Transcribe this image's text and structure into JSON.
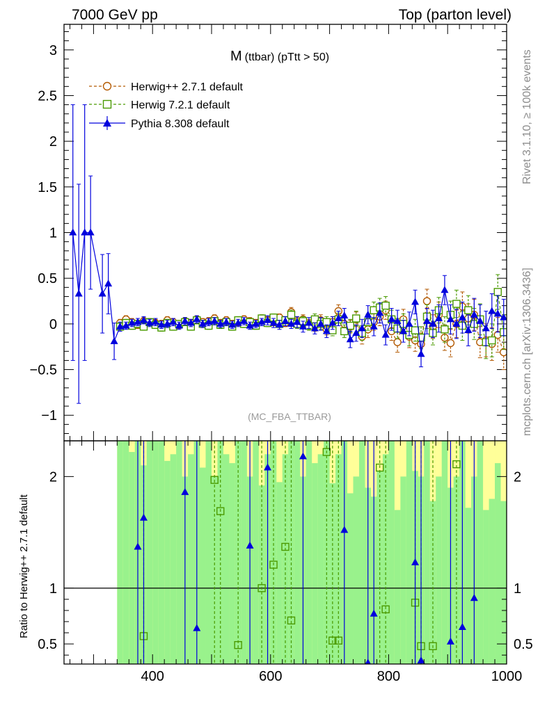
{
  "header": {
    "energy_label": "7000 GeV pp",
    "process_label": "Top (parton level)"
  },
  "side_labels": {
    "rivet": "Rivet 3.1.10, ≥ 100k events",
    "mcplots": "mcplots.cern.ch [arXiv:1306.3436]"
  },
  "chart_data": [
    {
      "type": "line",
      "title_main": "M",
      "title_sub": "(ttbar) (pTtt > 50)",
      "analysis_label": "(MC_FBA_TTBAR)",
      "xlabel": "",
      "ylabel": "",
      "xlim": [
        250,
        1000
      ],
      "ylim": [
        -1.28,
        3.28
      ],
      "yticks": [
        -1,
        -0.5,
        0,
        0.5,
        1,
        1.5,
        2,
        2.5,
        3
      ],
      "ytick_labels": [
        "−1",
        "−0.5",
        "0",
        "0.5",
        "1",
        "1.5",
        "2",
        "2.5",
        "3"
      ],
      "legend_position": "top-left",
      "legend": [
        "Herwig++ 2.7.1 default",
        "Herwig 7.2.1 default",
        "Pythia 8.308 default"
      ],
      "series": [
        {
          "name": "Herwig++ 2.7.1 default",
          "color": "#b35900",
          "marker": "circle-open",
          "line": "dashed",
          "x": [
            345,
            355,
            365,
            375,
            385,
            395,
            405,
            415,
            425,
            435,
            445,
            455,
            465,
            475,
            485,
            495,
            505,
            515,
            525,
            535,
            545,
            555,
            565,
            575,
            585,
            595,
            605,
            615,
            625,
            635,
            645,
            655,
            665,
            675,
            685,
            695,
            705,
            715,
            725,
            735,
            745,
            755,
            765,
            775,
            785,
            795,
            805,
            815,
            825,
            835,
            845,
            855,
            865,
            875,
            885,
            895,
            905,
            915,
            925,
            935,
            945,
            955,
            965,
            975,
            985,
            995
          ],
          "y": [
            0.01,
            0.05,
            0.02,
            -0.01,
            0.03,
            0.02,
            0.01,
            0.0,
            0.04,
            0.02,
            -0.01,
            0.03,
            0.01,
            0.05,
            0.02,
            0.03,
            0.06,
            0.01,
            0.04,
            0.0,
            0.02,
            0.05,
            0.03,
            0.01,
            0.06,
            0.04,
            0.02,
            0.07,
            0.01,
            0.13,
            0.03,
            0.05,
            0.0,
            -0.02,
            0.04,
            -0.06,
            0.02,
            0.14,
            0.0,
            -0.03,
            0.05,
            -0.14,
            -0.06,
            0.02,
            0.08,
            0.15,
            -0.08,
            -0.2,
            0.05,
            -0.14,
            -0.18,
            -0.22,
            0.25,
            -0.03,
            0.1,
            -0.15,
            -0.21,
            0.0,
            0.19,
            0.06,
            0.1,
            -0.2,
            -0.18,
            -0.22,
            -0.12,
            -0.31
          ],
          "yerr": [
            0.04,
            0.04,
            0.04,
            0.04,
            0.04,
            0.04,
            0.04,
            0.04,
            0.04,
            0.04,
            0.04,
            0.04,
            0.04,
            0.04,
            0.04,
            0.04,
            0.04,
            0.04,
            0.04,
            0.04,
            0.04,
            0.04,
            0.04,
            0.04,
            0.04,
            0.04,
            0.04,
            0.04,
            0.04,
            0.05,
            0.05,
            0.05,
            0.05,
            0.06,
            0.06,
            0.06,
            0.06,
            0.07,
            0.07,
            0.07,
            0.08,
            0.08,
            0.09,
            0.09,
            0.1,
            0.1,
            0.1,
            0.11,
            0.11,
            0.12,
            0.12,
            0.12,
            0.13,
            0.13,
            0.14,
            0.14,
            0.15,
            0.15,
            0.16,
            0.16,
            0.17,
            0.17,
            0.18,
            0.18,
            0.19,
            0.19
          ]
        },
        {
          "name": "Herwig 7.2.1 default",
          "color": "#4a9a00",
          "marker": "square-open",
          "line": "dashed",
          "x": [
            345,
            355,
            365,
            375,
            385,
            395,
            405,
            415,
            425,
            435,
            445,
            455,
            465,
            475,
            485,
            495,
            505,
            515,
            525,
            535,
            545,
            555,
            565,
            575,
            585,
            595,
            605,
            615,
            625,
            635,
            645,
            655,
            665,
            675,
            685,
            695,
            705,
            715,
            725,
            735,
            745,
            755,
            765,
            775,
            785,
            795,
            805,
            815,
            825,
            835,
            845,
            855,
            865,
            875,
            885,
            895,
            905,
            915,
            925,
            935,
            945,
            955,
            965,
            975,
            985,
            995
          ],
          "y": [
            -0.03,
            0.01,
            -0.02,
            0.0,
            -0.03,
            0.02,
            -0.01,
            -0.04,
            0.01,
            -0.03,
            0.0,
            0.02,
            -0.03,
            0.04,
            0.0,
            -0.02,
            0.03,
            -0.01,
            0.02,
            -0.03,
            0.04,
            0.0,
            0.02,
            -0.02,
            0.06,
            0.01,
            0.07,
            0.0,
            0.04,
            0.1,
            0.0,
            0.03,
            -0.02,
            0.05,
            0.0,
            0.02,
            -0.07,
            0.05,
            -0.08,
            -0.02,
            0.06,
            -0.1,
            0.02,
            0.15,
            0.18,
            0.2,
            0.05,
            -0.05,
            0.0,
            -0.12,
            -0.07,
            -0.15,
            0.08,
            -0.1,
            0.15,
            -0.06,
            0.1,
            0.22,
            -0.02,
            0.15,
            0.0,
            0.05,
            -0.2,
            -0.18,
            0.35,
            -0.09
          ],
          "yerr": [
            0.04,
            0.04,
            0.04,
            0.04,
            0.04,
            0.04,
            0.04,
            0.04,
            0.04,
            0.04,
            0.04,
            0.04,
            0.04,
            0.04,
            0.04,
            0.04,
            0.04,
            0.04,
            0.04,
            0.04,
            0.04,
            0.04,
            0.04,
            0.04,
            0.04,
            0.04,
            0.04,
            0.04,
            0.04,
            0.05,
            0.05,
            0.05,
            0.05,
            0.06,
            0.06,
            0.06,
            0.06,
            0.07,
            0.07,
            0.07,
            0.08,
            0.08,
            0.09,
            0.09,
            0.1,
            0.1,
            0.1,
            0.11,
            0.11,
            0.12,
            0.12,
            0.12,
            0.13,
            0.13,
            0.14,
            0.14,
            0.15,
            0.15,
            0.16,
            0.16,
            0.17,
            0.17,
            0.18,
            0.18,
            0.19,
            0.19
          ]
        },
        {
          "name": "Pythia 8.308 default",
          "color": "#0000dd",
          "marker": "triangle-filled",
          "line": "solid",
          "x": [
            265,
            275,
            285,
            295,
            315,
            325,
            335,
            345,
            355,
            365,
            375,
            385,
            395,
            405,
            415,
            425,
            435,
            445,
            455,
            465,
            475,
            485,
            495,
            505,
            515,
            525,
            535,
            545,
            555,
            565,
            575,
            585,
            595,
            605,
            615,
            625,
            635,
            645,
            655,
            665,
            675,
            685,
            695,
            705,
            715,
            725,
            735,
            745,
            755,
            765,
            775,
            785,
            795,
            805,
            815,
            825,
            835,
            845,
            855,
            865,
            875,
            885,
            895,
            905,
            915,
            925,
            935,
            945,
            955,
            965,
            975,
            985,
            995
          ],
          "y": [
            1.0,
            0.33,
            1.0,
            1.0,
            0.33,
            0.44,
            -0.19,
            -0.03,
            -0.02,
            0.01,
            0.02,
            0.04,
            0.01,
            0.02,
            -0.01,
            0.0,
            0.02,
            -0.02,
            0.03,
            0.01,
            0.05,
            0.0,
            0.02,
            0.03,
            0.0,
            0.02,
            -0.01,
            0.01,
            0.03,
            -0.02,
            0.0,
            0.02,
            0.04,
            0.01,
            -0.01,
            0.03,
            0.0,
            0.02,
            -0.03,
            0.01,
            -0.05,
            0.0,
            -0.08,
            0.01,
            0.06,
            0.09,
            -0.17,
            -0.1,
            -0.05,
            0.1,
            -0.03,
            0.12,
            -0.12,
            0.05,
            0.03,
            -0.08,
            0.0,
            0.24,
            -0.33,
            0.03,
            0.0,
            0.06,
            0.37,
            0.05,
            0.0,
            0.07,
            -0.07,
            0.1,
            0.03,
            -0.05,
            0.14,
            0.11,
            0.07
          ],
          "yerr": [
            1.4,
            1.2,
            1.4,
            0.62,
            0.43,
            0.33,
            0.2,
            0.05,
            0.04,
            0.04,
            0.04,
            0.04,
            0.04,
            0.04,
            0.04,
            0.04,
            0.04,
            0.04,
            0.04,
            0.04,
            0.04,
            0.04,
            0.04,
            0.04,
            0.04,
            0.04,
            0.04,
            0.04,
            0.04,
            0.04,
            0.04,
            0.04,
            0.05,
            0.05,
            0.05,
            0.05,
            0.05,
            0.06,
            0.06,
            0.06,
            0.06,
            0.07,
            0.07,
            0.07,
            0.08,
            0.08,
            0.09,
            0.09,
            0.1,
            0.1,
            0.1,
            0.11,
            0.11,
            0.12,
            0.12,
            0.12,
            0.13,
            0.13,
            0.14,
            0.14,
            0.15,
            0.15,
            0.16,
            0.16,
            0.16,
            0.17,
            0.17,
            0.18,
            0.18,
            0.19,
            0.19,
            0.2,
            0.2
          ]
        }
      ]
    },
    {
      "type": "line",
      "ylabel": "Ratio to Herwig++ 2.7.1 default",
      "xlabel": "",
      "xlim": [
        250,
        1000
      ],
      "ylim": [
        0.32,
        2.32
      ],
      "xticks": [
        400,
        600,
        800,
        1000
      ],
      "yticks": [
        0.5,
        1,
        2
      ],
      "ytick_labels": [
        "0.5",
        "1",
        "2"
      ],
      "reference_line": 1,
      "band": {
        "x_start": [
          340,
          350,
          360,
          370,
          380,
          390,
          400,
          410,
          420,
          430,
          440,
          450,
          460,
          470,
          480,
          490,
          500,
          510,
          520,
          530,
          540,
          550,
          560,
          570,
          580,
          590,
          600,
          610,
          620,
          630,
          640,
          650,
          660,
          670,
          680,
          690,
          700,
          710,
          720,
          730,
          740,
          750,
          760,
          770,
          780,
          790,
          800,
          810,
          820,
          830,
          840,
          850,
          860,
          870,
          880,
          890,
          900,
          910,
          920,
          930,
          940,
          950,
          960,
          970,
          980,
          990
        ],
        "green_top": [
          2.32,
          2.32,
          2.22,
          2.32,
          2.1,
          2.32,
          2.32,
          2.32,
          2.14,
          2.2,
          2.32,
          2.0,
          2.2,
          2.32,
          2.08,
          2.32,
          2.0,
          2.32,
          2.2,
          2.12,
          2.32,
          2.32,
          2.0,
          2.32,
          1.92,
          2.2,
          2.32,
          1.95,
          2.2,
          2.32,
          2.32,
          2.0,
          2.32,
          2.12,
          2.2,
          2.32,
          1.94,
          2.2,
          2.32,
          1.85,
          2.0,
          2.32,
          1.9,
          1.82,
          2.05,
          2.2,
          2.32,
          1.7,
          2.0,
          2.32,
          2.05,
          2.0,
          2.32,
          1.78,
          2.0,
          2.32,
          1.9,
          2.0,
          2.32,
          1.72,
          2.0,
          2.32,
          1.7,
          1.8,
          2.12,
          1.78
        ],
        "yellow_top": [
          2.32,
          2.32,
          2.32,
          2.32,
          2.32,
          2.32,
          2.32,
          2.32,
          2.32,
          2.32,
          2.32,
          2.32,
          2.32,
          2.32,
          2.32,
          2.32,
          2.32,
          2.32,
          2.32,
          2.32,
          2.32,
          2.32,
          2.32,
          2.32,
          2.32,
          2.32,
          2.32,
          2.32,
          2.32,
          2.32,
          2.32,
          2.32,
          2.32,
          2.32,
          2.32,
          2.32,
          2.32,
          2.32,
          2.32,
          2.32,
          2.32,
          2.32,
          2.32,
          2.32,
          2.32,
          2.32,
          2.32,
          2.32,
          2.32,
          2.32,
          2.32,
          2.32,
          2.32,
          2.32,
          2.32,
          2.32,
          2.32,
          2.32,
          2.32,
          2.32,
          2.32,
          2.32,
          2.32,
          2.32,
          2.32,
          2.32
        ],
        "bottom": 0.32
      },
      "series": [
        {
          "name": "Herwig 7.2.1 default",
          "color": "#4a9a00",
          "line": "dashed",
          "marker": "square-open",
          "x": [
            385,
            505,
            515,
            545,
            585,
            605,
            625,
            635,
            705,
            715,
            695,
            785,
            795,
            845,
            855,
            875,
            915
          ],
          "y": [
            0.57,
            1.97,
            1.69,
            0.49,
            1.0,
            1.21,
            1.37,
            0.71,
            0.53,
            0.53,
            2.22,
            2.08,
            0.81,
            0.87,
            0.48,
            0.48,
            2.11
          ]
        },
        {
          "name": "Pythia 8.308 default",
          "color": "#0000dd",
          "line": "solid",
          "marker": "triangle-filled",
          "x": [
            375,
            385,
            455,
            475,
            565,
            595,
            655,
            725,
            765,
            775,
            845,
            855,
            905,
            925,
            945
          ],
          "y": [
            1.37,
            1.63,
            1.86,
            0.64,
            1.38,
            2.08,
            2.18,
            1.52,
            0.33,
            0.77,
            1.23,
            0.35,
            0.52,
            0.65,
            0.91
          ]
        }
      ]
    }
  ]
}
